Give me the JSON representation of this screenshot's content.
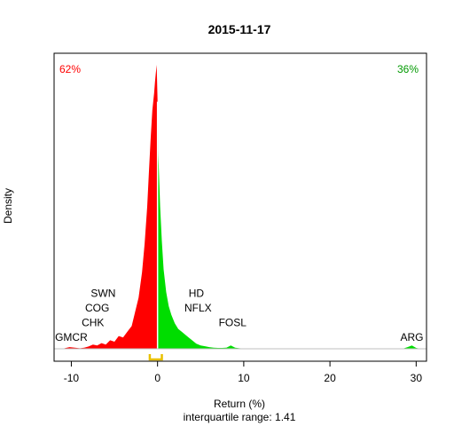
{
  "chart_data": {
    "type": "area",
    "title": "2015-11-17",
    "xlabel": "Return (%)",
    "ylabel": "Density",
    "subtitle": "interquartile range: 1.41",
    "xlim": [
      -12.0,
      31.2
    ],
    "ylim": [
      0,
      1.0
    ],
    "xticks": [
      -10,
      0,
      10,
      20,
      30
    ],
    "pct_negative": "62%",
    "pct_positive": "36%",
    "colors": {
      "negative": "#ff0000",
      "positive": "#00dd00",
      "iqr": "#e8c000",
      "baseline": "#bfbfbf"
    },
    "iqr": [
      -0.9,
      0.5
    ],
    "density": {
      "x": [
        -10.8,
        -10.2,
        -9.6,
        -9.0,
        -8.5,
        -8.0,
        -7.5,
        -7.0,
        -6.5,
        -6.0,
        -5.5,
        -5.0,
        -4.5,
        -4.0,
        -3.5,
        -3.0,
        -2.6,
        -2.2,
        -1.8,
        -1.5,
        -1.2,
        -1.0,
        -0.8,
        -0.6,
        -0.4,
        -0.3,
        -0.2,
        -0.1,
        0.0,
        0.1,
        0.3,
        0.5,
        0.7,
        1.0,
        1.3,
        1.6,
        2.0,
        2.4,
        2.8,
        3.2,
        3.6,
        4.0,
        4.5,
        5.0,
        5.5,
        6.0,
        6.5,
        7.0,
        7.5,
        8.0,
        8.5,
        9.0,
        9.5,
        10.0,
        12.0,
        16.0,
        20.0,
        25.0,
        28.5,
        29.0,
        29.5,
        30.0,
        30.5
      ],
      "y": [
        0.002,
        0.006,
        0.004,
        0.002,
        0.004,
        0.008,
        0.015,
        0.012,
        0.02,
        0.015,
        0.03,
        0.025,
        0.045,
        0.04,
        0.06,
        0.08,
        0.13,
        0.18,
        0.27,
        0.37,
        0.5,
        0.62,
        0.74,
        0.84,
        0.9,
        0.94,
        0.97,
        1.0,
        0.87,
        0.68,
        0.5,
        0.38,
        0.28,
        0.2,
        0.15,
        0.12,
        0.09,
        0.07,
        0.06,
        0.05,
        0.04,
        0.03,
        0.018,
        0.012,
        0.009,
        0.006,
        0.004,
        0.003,
        0.003,
        0.004,
        0.012,
        0.004,
        0.002,
        0.001,
        0.001,
        0.0,
        0.0,
        0.0,
        0.001,
        0.006,
        0.012,
        0.003,
        0.0
      ]
    },
    "annotations": [
      {
        "label": "GMCR",
        "x": -10.0,
        "level": 1
      },
      {
        "label": "CHK",
        "x": -7.5,
        "level": 2
      },
      {
        "label": "COG",
        "x": -7.0,
        "level": 3
      },
      {
        "label": "SWN",
        "x": -6.3,
        "level": 4
      },
      {
        "label": "HD",
        "x": 4.5,
        "level": 4
      },
      {
        "label": "NFLX",
        "x": 4.7,
        "level": 3
      },
      {
        "label": "FOSL",
        "x": 8.7,
        "level": 2
      },
      {
        "label": "ARG",
        "x": 29.5,
        "level": 1
      }
    ]
  }
}
